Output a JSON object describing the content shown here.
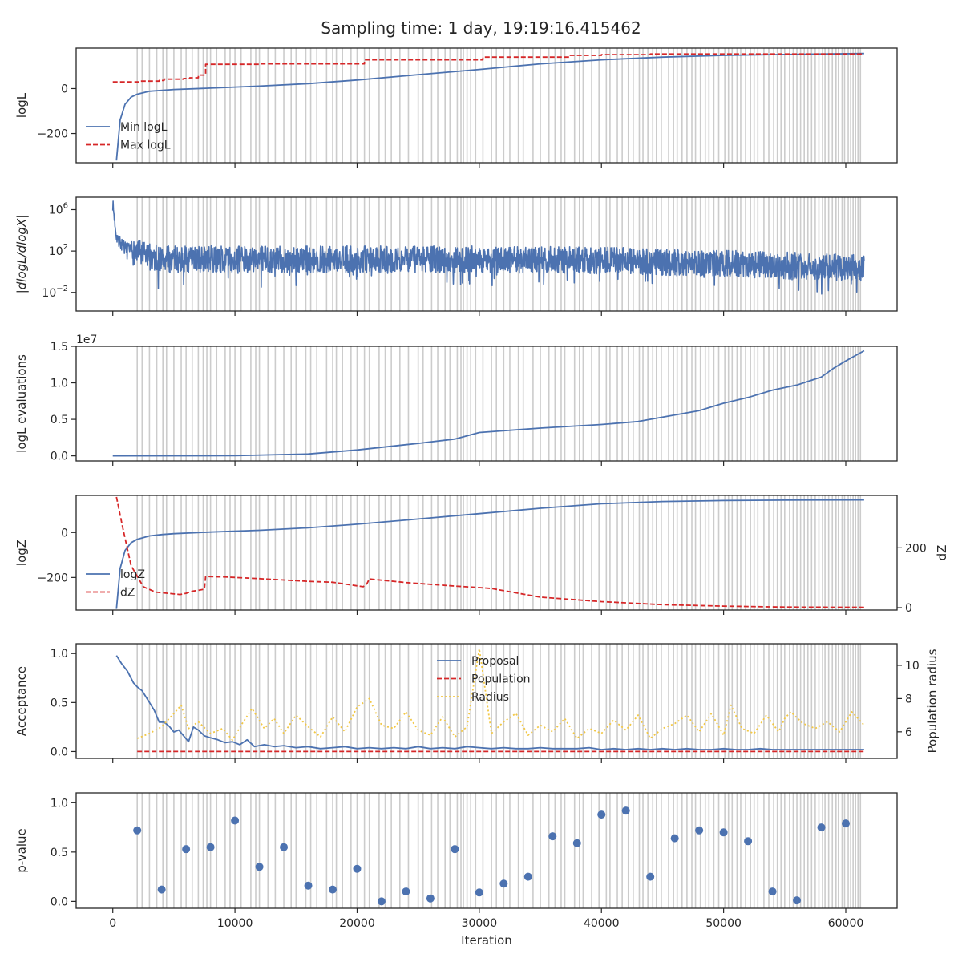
{
  "chart_data": {
    "title": "Sampling time: 1 day, 19:19:16.415462",
    "xlabel": "Iteration",
    "xlim": [
      -3000,
      64200
    ],
    "x_ticks": [
      0,
      10000,
      20000,
      30000,
      40000,
      50000,
      60000
    ],
    "x_tick_labels": [
      "0",
      "10000",
      "20000",
      "30000",
      "40000",
      "50000",
      "60000"
    ],
    "n_iterations": 61500,
    "vlines": [
      2000,
      2400,
      3000,
      3600,
      4100,
      4400,
      5000,
      5600,
      6000,
      6500,
      7000,
      7400,
      7700,
      8000,
      8500,
      9200,
      9600,
      10000,
      10500,
      11300,
      11700,
      12000,
      12700,
      13300,
      14000,
      14600,
      15000,
      15800,
      16200,
      16700,
      17500,
      18000,
      18300,
      18800,
      19500,
      20000,
      20600,
      21000,
      21800,
      22300,
      22800,
      23500,
      24200,
      25000,
      25400,
      26100,
      26600,
      27200,
      27600,
      28200,
      28500,
      28700,
      29000,
      29300,
      29700,
      30300,
      31000,
      31400,
      32000,
      32500,
      33200,
      33600,
      34400,
      35000,
      35700,
      36200,
      36700,
      37000,
      37800,
      38200,
      38500,
      39200,
      39800,
      40400,
      40700,
      41300,
      41700,
      42200,
      42600,
      43100,
      43400,
      43800,
      44200,
      44500,
      44900,
      45500,
      45900,
      46200,
      46600,
      47000,
      47400,
      47700,
      48100,
      48500,
      48800,
      49200,
      49600,
      50100,
      50400,
      50700,
      51100,
      51400,
      51800,
      52200,
      52500,
      52800,
      53300,
      53700,
      54100,
      54400,
      54700,
      55000,
      55400,
      55700,
      56000,
      56300,
      56600,
      56900,
      57200,
      57500,
      57800,
      58100,
      58300,
      58600,
      58900,
      59200,
      59400,
      59700,
      59900,
      60200,
      60400,
      60600,
      60800,
      61000,
      61200
    ],
    "panels": [
      {
        "type": "line",
        "ylabel": "logL",
        "ylim": [
          -330,
          180
        ],
        "y_ticks": [
          0,
          -200
        ],
        "y_tick_labels": [
          "0",
          "−200"
        ],
        "legend_loc": "lower-left",
        "series": [
          {
            "name": "Min logL",
            "color": "#4c72b0",
            "style": "solid",
            "x": [
              300,
              600,
              1000,
              1500,
              2000,
              3000,
              5000,
              8000,
              12000,
              16000,
              20000,
              25000,
              30000,
              35000,
              40000,
              45000,
              50000,
              55000,
              61500
            ],
            "y": [
              -320,
              -140,
              -70,
              -38,
              -25,
              -12,
              -4,
              2,
              11,
              22,
              38,
              62,
              85,
              110,
              128,
              140,
              148,
              152,
              156
            ]
          },
          {
            "name": "Max logL",
            "color": "#d62728",
            "style": "dashed",
            "x": [
              0,
              2300,
              2300,
              3800,
              3800,
              4200,
              4200,
              5800,
              5800,
              6300,
              6300,
              7000,
              7000,
              7600,
              7600,
              12000,
              12000,
              20600,
              20600,
              30300,
              30300,
              37400,
              37400,
              40000,
              40000,
              44000,
              44000,
              61500
            ],
            "y": [
              30,
              30,
              33,
              33,
              36,
              36,
              42,
              42,
              45,
              45,
              48,
              48,
              60,
              60,
              108,
              108,
              110,
              110,
              128,
              128,
              140,
              140,
              148,
              148,
              151,
              151,
              154,
              154
            ]
          }
        ]
      },
      {
        "type": "line",
        "ylabel": "|dlogL/dlogX|",
        "yscale": "log",
        "ylim": [
          -3.8,
          7.2
        ],
        "y_ticks": [
          6,
          2,
          -2
        ],
        "y_tick_labels": [
          "10^6",
          "10^2",
          "10^-2"
        ],
        "series": [
          {
            "name": "",
            "color": "#4c72b0",
            "style": "solid",
            "x": [
              0,
              300,
              600,
              1000,
              1500,
              2500,
              4000,
              10000,
              20000,
              30000,
              40000,
              50000,
              55000,
              61500
            ],
            "y": [
              6.5,
              3.5,
              2.8,
              2.3,
              2.0,
              1.6,
              1.2,
              1.2,
              1.2,
              1.2,
              1.1,
              0.8,
              0.6,
              0.4
            ]
          }
        ]
      },
      {
        "type": "line",
        "ylabel": "logL evaluations",
        "y_offset_label": "1e7",
        "ylim": [
          -0.07,
          1.5
        ],
        "y_ticks": [
          0,
          0.5,
          1.0,
          1.5
        ],
        "y_tick_labels": [
          "0.0",
          "0.5",
          "1.0",
          "1.5"
        ],
        "series": [
          {
            "name": "",
            "color": "#4c72b0",
            "style": "solid",
            "x": [
              0,
              10000,
              16000,
              20000,
              25000,
              28000,
              30000,
              35000,
              40000,
              43000,
              46000,
              48000,
              50000,
              52000,
              54000,
              56000,
              58000,
              59000,
              60000,
              61500
            ],
            "y": [
              0,
              0.003,
              0.025,
              0.08,
              0.17,
              0.23,
              0.32,
              0.38,
              0.43,
              0.47,
              0.56,
              0.62,
              0.72,
              0.8,
              0.9,
              0.97,
              1.08,
              1.2,
              1.3,
              1.44
            ]
          }
        ]
      },
      {
        "type": "line",
        "ylabel": "logZ",
        "ylabel_right": "dZ",
        "ylim": [
          -345,
          165
        ],
        "y_ticks": [
          0,
          -200
        ],
        "y_tick_labels": [
          "0",
          "−200"
        ],
        "ylim_right": [
          -8,
          375
        ],
        "y_ticks_right": [
          0,
          200
        ],
        "y_tick_labels_right": [
          "0",
          "200"
        ],
        "legend_loc": "lower-left",
        "series": [
          {
            "name": "logZ",
            "color": "#4c72b0",
            "style": "solid",
            "axis": "left",
            "x": [
              300,
              600,
              1000,
              1500,
              2000,
              3000,
              4000,
              5000,
              8000,
              12000,
              16000,
              20000,
              25000,
              30000,
              35000,
              40000,
              45000,
              50000,
              55000,
              61500
            ],
            "y": [
              -340,
              -160,
              -80,
              -45,
              -30,
              -15,
              -9,
              -5,
              2,
              10,
              21,
              37,
              60,
              84,
              108,
              128,
              138,
              142,
              144,
              145
            ]
          },
          {
            "name": "dZ",
            "color": "#d62728",
            "style": "dashed",
            "axis": "right",
            "x": [
              300,
              800,
              1500,
              2500,
              3500,
              4500,
              5500,
              6000,
              6500,
              7000,
              7500,
              7600,
              9000,
              12000,
              16000,
              18000,
              20500,
              20800,
              21000,
              24000,
              28000,
              30000,
              31000,
              35000,
              40000,
              45000,
              50000,
              55000,
              61500
            ],
            "y": [
              370,
              270,
              140,
              70,
              52,
              48,
              44,
              48,
              55,
              58,
              62,
              104,
              103,
              97,
              88,
              85,
              70,
              80,
              96,
              84,
              72,
              67,
              64,
              35,
              20,
              10,
              5,
              2,
              1
            ]
          }
        ]
      },
      {
        "type": "line",
        "ylabel": "Acceptance",
        "ylabel_right": "Population radius",
        "ylim": [
          -0.07,
          1.1
        ],
        "y_ticks": [
          0,
          0.5,
          1.0
        ],
        "y_tick_labels": [
          "0.0",
          "0.5",
          "1.0"
        ],
        "ylim_right": [
          4.4,
          11.3
        ],
        "y_ticks_right": [
          6,
          8,
          10
        ],
        "y_tick_labels_right": [
          "6",
          "8",
          "10"
        ],
        "legend_loc": "top-center",
        "series": [
          {
            "name": "Proposal",
            "color": "#4c72b0",
            "style": "solid",
            "axis": "left",
            "x": [
              300,
              700,
              1200,
              1700,
              2000,
              2400,
              2800,
              3100,
              3400,
              3800,
              4200,
              4600,
              5000,
              5400,
              5800,
              6200,
              6600,
              7000,
              7500,
              8000,
              8600,
              9200,
              9800,
              10400,
              11000,
              11600,
              12400,
              13200,
              14000,
              15000,
              16000,
              17000,
              18000,
              19000,
              20000,
              21000,
              22000,
              23000,
              24000,
              25000,
              26000,
              27000,
              28000,
              29000,
              30000,
              31000,
              32000,
              33000,
              34000,
              35000,
              36000,
              37000,
              38000,
              39000,
              40000,
              41000,
              42000,
              43000,
              44000,
              45000,
              46000,
              47000,
              48000,
              49000,
              50000,
              51000,
              52000,
              53000,
              54000,
              55000,
              56000,
              57000,
              58000,
              59000,
              60000,
              61500
            ],
            "y": [
              0.98,
              0.9,
              0.82,
              0.7,
              0.66,
              0.62,
              0.54,
              0.48,
              0.42,
              0.3,
              0.3,
              0.26,
              0.2,
              0.22,
              0.16,
              0.1,
              0.25,
              0.22,
              0.16,
              0.14,
              0.12,
              0.09,
              0.1,
              0.07,
              0.12,
              0.05,
              0.07,
              0.05,
              0.06,
              0.04,
              0.05,
              0.03,
              0.04,
              0.05,
              0.03,
              0.04,
              0.03,
              0.04,
              0.03,
              0.05,
              0.03,
              0.04,
              0.03,
              0.05,
              0.04,
              0.03,
              0.04,
              0.03,
              0.03,
              0.04,
              0.03,
              0.03,
              0.03,
              0.04,
              0.02,
              0.03,
              0.02,
              0.03,
              0.02,
              0.03,
              0.02,
              0.03,
              0.02,
              0.02,
              0.03,
              0.02,
              0.02,
              0.03,
              0.02,
              0.02,
              0.02,
              0.02,
              0.02,
              0.02,
              0.02,
              0.02
            ]
          },
          {
            "name": "Population",
            "color": "#d62728",
            "style": "dashed",
            "axis": "left",
            "x": [
              2000,
              61500
            ],
            "y": [
              0,
              0
            ]
          },
          {
            "name": "Radius",
            "color": "#f2c744",
            "style": "dotted",
            "axis": "right",
            "x": [
              2000,
              3000,
              4000,
              5000,
              5600,
              6200,
              7000,
              8000,
              9000,
              9800,
              10600,
              11400,
              12400,
              13200,
              14000,
              15000,
              16000,
              17000,
              18000,
              19000,
              20000,
              21000,
              22000,
              23000,
              24000,
              25000,
              26000,
              27000,
              28000,
              29000,
              30000,
              31000,
              32000,
              33000,
              34000,
              35000,
              36000,
              37000,
              38000,
              39000,
              40000,
              41000,
              42000,
              43000,
              44000,
              45000,
              46000,
              47000,
              48000,
              49000,
              50000,
              50600,
              51500,
              52500,
              53500,
              54500,
              55000,
              55500,
              56500,
              57500,
              58500,
              59500,
              60500,
              61500
            ],
            "y": [
              5.6,
              5.9,
              6.3,
              7.1,
              7.6,
              6.2,
              6.6,
              5.9,
              6.2,
              5.5,
              6.5,
              7.4,
              6.2,
              6.8,
              5.9,
              7.0,
              6.3,
              5.7,
              6.9,
              6.0,
              7.5,
              8.0,
              6.4,
              6.2,
              7.2,
              6.1,
              5.8,
              6.9,
              5.7,
              6.3,
              11.0,
              5.9,
              6.6,
              7.1,
              5.8,
              6.4,
              6.0,
              6.8,
              5.6,
              6.2,
              5.9,
              6.7,
              6.1,
              7.0,
              5.6,
              6.2,
              6.5,
              7.0,
              6.0,
              7.1,
              5.8,
              7.6,
              6.2,
              5.9,
              7.0,
              6.0,
              6.8,
              7.2,
              6.5,
              6.2,
              6.6,
              6.0,
              7.2,
              6.4
            ]
          }
        ]
      },
      {
        "type": "scatter",
        "ylabel": "p-value",
        "ylim": [
          -0.07,
          1.1
        ],
        "y_ticks": [
          0,
          0.5,
          1.0
        ],
        "y_tick_labels": [
          "0.0",
          "0.5",
          "1.0"
        ],
        "series": [
          {
            "name": "",
            "color": "#4c72b0",
            "x": [
              2000,
              4000,
              6000,
              8000,
              10000,
              12000,
              14000,
              16000,
              18000,
              20000,
              22000,
              24000,
              26000,
              28000,
              30000,
              32000,
              34000,
              36000,
              38000,
              40000,
              42000,
              44000,
              46000,
              48000,
              50000,
              52000,
              54000,
              56000,
              58000,
              60000
            ],
            "y": [
              0.72,
              0.12,
              0.53,
              0.55,
              0.82,
              0.35,
              0.55,
              0.16,
              0.12,
              0.33,
              0.0,
              0.1,
              0.03,
              0.53,
              0.09,
              0.18,
              0.25,
              0.66,
              0.59,
              0.88,
              0.92,
              0.25,
              0.64,
              0.72,
              0.7,
              0.61,
              0.1,
              0.01,
              0.75,
              0.79
            ]
          }
        ]
      }
    ]
  }
}
